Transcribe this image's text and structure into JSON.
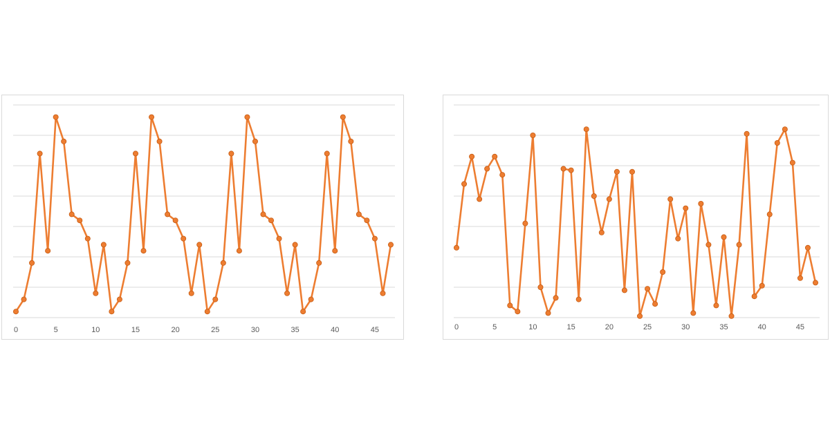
{
  "chart_data": [
    {
      "type": "line",
      "x": [
        0,
        1,
        2,
        3,
        4,
        5,
        6,
        7,
        8,
        9,
        10,
        11,
        12,
        13,
        14,
        15,
        16,
        17,
        18,
        19,
        20,
        21,
        22,
        23,
        24,
        25,
        26,
        27,
        28,
        29,
        30,
        31,
        32,
        33,
        34,
        35,
        36,
        37,
        38,
        39,
        40,
        41,
        42,
        43,
        44,
        45,
        46,
        47
      ],
      "series": [
        {
          "values": [
            0.2,
            0.6,
            1.8,
            5.4,
            2.2,
            6.6,
            5.8,
            3.4,
            3.2,
            2.6,
            0.8,
            2.4,
            0.2,
            0.6,
            1.8,
            5.4,
            2.2,
            6.6,
            5.8,
            3.4,
            3.2,
            2.6,
            0.8,
            2.4,
            0.2,
            0.6,
            1.8,
            5.4,
            2.2,
            6.6,
            5.8,
            3.4,
            3.2,
            2.6,
            0.8,
            2.4,
            0.2,
            0.6,
            1.8,
            5.4,
            2.2,
            6.6,
            5.8,
            3.4,
            3.2,
            2.6,
            0.8,
            2.4
          ],
          "color": "#ed7d31"
        }
      ],
      "xticks": [
        0,
        5,
        10,
        15,
        20,
        25,
        30,
        35,
        40,
        45
      ],
      "xlim": [
        0,
        47
      ],
      "ylim": [
        0,
        7
      ],
      "ygrid_count": 8,
      "xlabel": "",
      "ylabel": "",
      "title": "",
      "grid": true,
      "y_axis_labels": false
    },
    {
      "type": "line",
      "x": [
        0,
        1,
        2,
        3,
        4,
        5,
        6,
        7,
        8,
        9,
        10,
        11,
        12,
        13,
        14,
        15,
        16,
        17,
        18,
        19,
        20,
        21,
        22,
        23,
        24,
        25,
        26,
        27,
        28,
        29,
        30,
        31,
        32,
        33,
        34,
        35,
        36,
        37,
        38,
        39,
        40,
        41,
        42,
        43,
        44,
        45,
        46,
        47
      ],
      "series": [
        {
          "values": [
            2.3,
            4.4,
            5.3,
            3.9,
            4.9,
            5.3,
            4.7,
            0.4,
            0.2,
            3.1,
            6.0,
            1.0,
            0.15,
            0.65,
            4.9,
            4.85,
            0.6,
            6.2,
            4.0,
            2.8,
            3.9,
            4.8,
            0.9,
            4.8,
            0.05,
            0.95,
            0.45,
            1.5,
            3.9,
            2.6,
            3.6,
            0.15,
            3.75,
            2.4,
            0.4,
            2.65,
            0.05,
            2.4,
            6.05,
            0.7,
            1.05,
            3.4,
            5.75,
            6.2,
            5.1,
            1.3,
            2.3,
            1.15
          ],
          "color": "#ed7d31"
        }
      ],
      "xticks": [
        0,
        5,
        10,
        15,
        20,
        25,
        30,
        35,
        40,
        45
      ],
      "xlim": [
        0,
        47
      ],
      "ylim": [
        0,
        7
      ],
      "ygrid_count": 8,
      "xlabel": "",
      "ylabel": "",
      "title": "",
      "grid": true,
      "y_axis_labels": false
    }
  ]
}
